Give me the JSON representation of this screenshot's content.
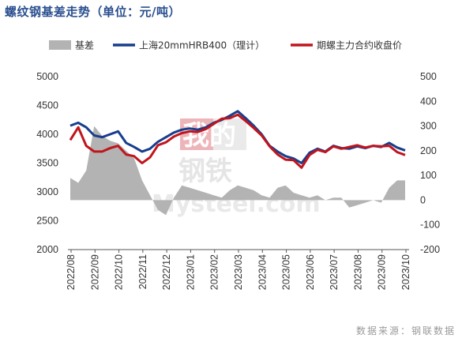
{
  "title": "螺纹钢基差走势（单位：元/吨）",
  "source": "数据来源：钢联数据",
  "watermark": {
    "line1": "我的",
    "line2": "钢铁",
    "brand": "Mysteel.com"
  },
  "colors": {
    "basis": "#b3b3b3",
    "spot": "#173d8c",
    "futures": "#c0151d",
    "title": "#2a4f8f"
  },
  "chart_data": {
    "type": "line",
    "title": "螺纹钢基差走势（单位：元/吨）",
    "legend_position": "top",
    "x_tick_labels": [
      "2022/08",
      "2022/09",
      "2022/10",
      "2022/11",
      "2022/12",
      "2023/01",
      "2023/02",
      "2023/03",
      "2023/04",
      "2023/05",
      "2023/06",
      "2023/07",
      "2023/08",
      "2023/09",
      "2023/10"
    ],
    "x": [
      "2022/08",
      "2022/08",
      "2022/09",
      "2022/09",
      "2022/09",
      "2022/10",
      "2022/10",
      "2022/10",
      "2022/11",
      "2022/11",
      "2022/11",
      "2022/12",
      "2022/12",
      "2022/12",
      "2023/01",
      "2023/01",
      "2023/01",
      "2023/02",
      "2023/02",
      "2023/02",
      "2023/03",
      "2023/03",
      "2023/03",
      "2023/04",
      "2023/04",
      "2023/04",
      "2023/05",
      "2023/05",
      "2023/05",
      "2023/06",
      "2023/06",
      "2023/06",
      "2023/07",
      "2023/07",
      "2023/07",
      "2023/08",
      "2023/08",
      "2023/08",
      "2023/09",
      "2023/09",
      "2023/09",
      "2023/10",
      "2023/10"
    ],
    "left_axis": {
      "ylim": [
        2000,
        5000
      ],
      "ticks": [
        2000,
        2500,
        3000,
        3500,
        4000,
        4500,
        5000
      ]
    },
    "right_axis": {
      "ylim": [
        -200,
        500
      ],
      "ticks": [
        -200,
        -100,
        0,
        100,
        200,
        300,
        400,
        500
      ]
    },
    "series": [
      {
        "name": "基差",
        "type": "area",
        "axis": "right",
        "color": "#b3b3b3",
        "values": [
          90,
          70,
          120,
          300,
          260,
          240,
          230,
          200,
          170,
          80,
          20,
          -40,
          -60,
          10,
          60,
          50,
          40,
          30,
          20,
          10,
          40,
          60,
          50,
          40,
          20,
          10,
          50,
          60,
          30,
          20,
          10,
          20,
          0,
          10,
          10,
          -30,
          -20,
          -10,
          0,
          -10,
          50,
          80,
          80
        ]
      },
      {
        "name": "上海20mmHRB400（理计）",
        "type": "line",
        "axis": "left",
        "color": "#173d8c",
        "values": [
          4150,
          4200,
          4120,
          3980,
          3950,
          4000,
          4050,
          3850,
          3780,
          3700,
          3750,
          3870,
          3950,
          4030,
          4080,
          4100,
          4080,
          4120,
          4200,
          4250,
          4320,
          4400,
          4280,
          4150,
          4000,
          3800,
          3700,
          3620,
          3580,
          3500,
          3680,
          3750,
          3700,
          3800,
          3760,
          3750,
          3790,
          3760,
          3800,
          3780,
          3850,
          3770,
          3720
        ]
      },
      {
        "name": "期螺主力合约收盘价",
        "type": "line",
        "axis": "left",
        "color": "#c0151d",
        "values": [
          3900,
          4120,
          3800,
          3700,
          3700,
          3760,
          3800,
          3650,
          3620,
          3500,
          3600,
          3810,
          3860,
          3960,
          4020,
          4050,
          4040,
          4090,
          4180,
          4270,
          4280,
          4340,
          4230,
          4110,
          3980,
          3790,
          3650,
          3560,
          3550,
          3420,
          3640,
          3730,
          3690,
          3790,
          3750,
          3780,
          3810,
          3770,
          3800,
          3790,
          3800,
          3690,
          3640
        ]
      }
    ]
  }
}
